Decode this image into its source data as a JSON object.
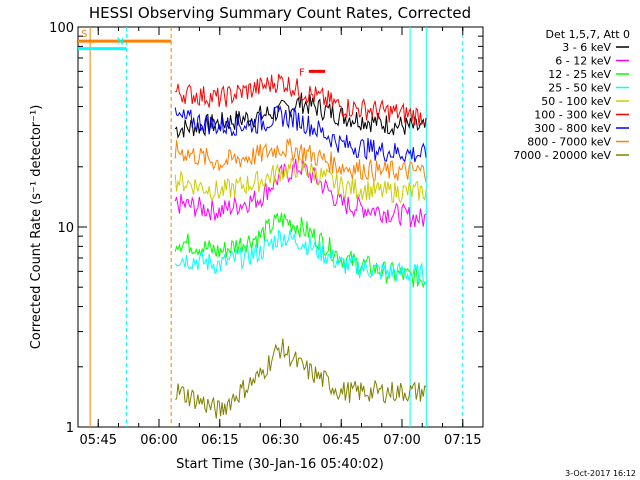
{
  "chart_data": {
    "type": "line",
    "title": "HESSI Observing Summary Count Rates, Corrected",
    "xlabel": "Start Time (30-Jan-16 05:40:02)",
    "ylabel": "Corrected Count Rate (s⁻¹ detector⁻¹)",
    "y_scale": "log",
    "ylim": [
      1,
      100
    ],
    "y_ticks": [
      "1",
      "10",
      "100"
    ],
    "x_ticks": [
      "05:45",
      "06:00",
      "06:15",
      "06:30",
      "06:45",
      "07:00",
      "07:15"
    ],
    "xlim_minutes": [
      340,
      1161
    ],
    "xlim_minutes_note": "x values are minutes from 00:00 UTC on 30-Jan-16 scaled x0.? ",
    "legend_header": "Det 1,5,7, Att 0",
    "legend_position": "top-right",
    "footer_date": "3-Oct-2017 16:12",
    "series": [
      {
        "name": "3 - 6 keV",
        "color": "#000000",
        "x": [
          "06:05",
          "06:15",
          "06:25",
          "06:30",
          "06:35",
          "06:45",
          "06:55",
          "07:05"
        ],
        "values": [
          31,
          33,
          36,
          38,
          42,
          36,
          33,
          31
        ]
      },
      {
        "name": "6 - 12 keV",
        "color": "#ff00ff",
        "x": [
          "06:05",
          "06:15",
          "06:25",
          "06:30",
          "06:35",
          "06:45",
          "06:55",
          "07:05"
        ],
        "values": [
          13,
          12,
          14,
          18,
          20,
          13,
          12,
          11
        ]
      },
      {
        "name": "12 - 25 keV",
        "color": "#00ff00",
        "x": [
          "06:05",
          "06:15",
          "06:25",
          "06:30",
          "06:35",
          "06:45",
          "06:55",
          "07:05"
        ],
        "values": [
          8.5,
          7.5,
          9,
          11,
          10,
          7,
          6,
          5.5
        ]
      },
      {
        "name": "25 - 50 keV",
        "color": "#00ffff",
        "x": [
          "06:05",
          "06:15",
          "06:25",
          "06:30",
          "06:35",
          "06:45",
          "06:55",
          "07:05"
        ],
        "values": [
          7,
          6.5,
          7.5,
          9,
          8.5,
          6.5,
          6,
          5.8
        ]
      },
      {
        "name": "50 - 100 keV",
        "color": "#cccc00",
        "x": [
          "06:05",
          "06:15",
          "06:25",
          "06:30",
          "06:35",
          "06:45",
          "06:55",
          "07:05"
        ],
        "values": [
          17,
          15,
          17,
          19,
          20,
          16,
          15,
          15
        ]
      },
      {
        "name": "100 - 300 keV",
        "color": "#ff0000",
        "x": [
          "06:05",
          "06:15",
          "06:25",
          "06:30",
          "06:35",
          "06:45",
          "06:55",
          "07:05"
        ],
        "values": [
          47,
          44,
          50,
          54,
          48,
          40,
          38,
          36
        ]
      },
      {
        "name": "300 - 800 keV",
        "color": "#0000ff",
        "x": [
          "06:05",
          "06:15",
          "06:25",
          "06:30",
          "06:35",
          "06:45",
          "06:55",
          "07:05"
        ],
        "values": [
          35,
          32,
          33,
          36,
          34,
          26,
          24,
          23
        ]
      },
      {
        "name": "800 - 7000 keV",
        "color": "#ff8000",
        "x": [
          "06:05",
          "06:15",
          "06:25",
          "06:30",
          "06:35",
          "06:45",
          "06:55",
          "07:05"
        ],
        "values": [
          24,
          21,
          23,
          25,
          24,
          20,
          19,
          19
        ]
      },
      {
        "name": "7000 - 20000 keV",
        "color": "#808000",
        "x": [
          "06:05",
          "06:15",
          "06:25",
          "06:30",
          "06:35",
          "06:45",
          "06:55",
          "07:05"
        ],
        "values": [
          1.5,
          1.2,
          1.8,
          2.5,
          2,
          1.5,
          1.5,
          1.5
        ]
      }
    ],
    "flags": [
      {
        "label": "S",
        "color": "#ff8000",
        "x_start": "05:40",
        "x_end": "06:03",
        "value": 85
      },
      {
        "label": "N",
        "color": "#00ffff",
        "x_start": "05:40",
        "x_end": "05:52",
        "value": 78
      },
      {
        "label": "F",
        "color": "#ff0000",
        "x_start": "06:37",
        "x_end": "06:41",
        "value": 60
      }
    ]
  }
}
